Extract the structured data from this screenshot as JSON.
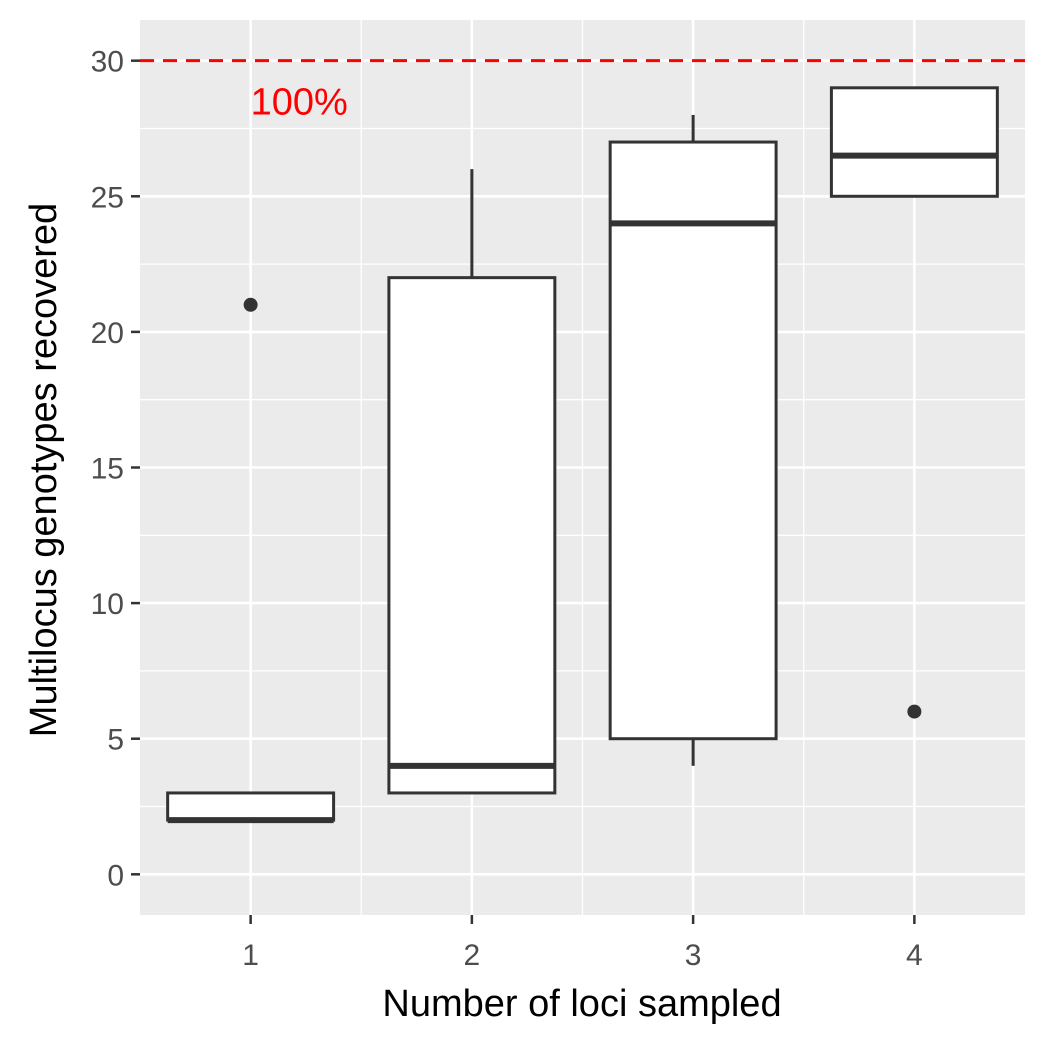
{
  "chart_data": {
    "type": "boxplot",
    "xlabel": "Number of loci sampled",
    "ylabel": "Multilocus genotypes recovered",
    "categories": [
      "1",
      "2",
      "3",
      "4"
    ],
    "ylim": [
      -1.5,
      31.5
    ],
    "yticks": [
      0,
      5,
      10,
      15,
      20,
      25,
      30
    ],
    "ytick_labels": [
      "0",
      "5",
      "10",
      "15",
      "20",
      "25",
      "30"
    ],
    "grid": true,
    "boxes": [
      {
        "category": "1",
        "whisker_low": 2,
        "q1": 2,
        "median": 2,
        "q3": 3,
        "whisker_high": 3,
        "outliers": [
          21
        ]
      },
      {
        "category": "2",
        "whisker_low": 3,
        "q1": 3,
        "median": 4,
        "q3": 22,
        "whisker_high": 26,
        "outliers": []
      },
      {
        "category": "3",
        "whisker_low": 4,
        "q1": 5,
        "median": 24,
        "q3": 27,
        "whisker_high": 28,
        "outliers": []
      },
      {
        "category": "4",
        "whisker_low": 25,
        "q1": 25,
        "median": 26.5,
        "q3": 29,
        "whisker_high": 29,
        "outliers": [
          6
        ]
      }
    ],
    "reference_line": {
      "y": 30,
      "style": "dashed",
      "color": "#ff0000"
    },
    "annotation": {
      "text": "100%",
      "x": "1",
      "y": 28.5,
      "color": "#ff0000"
    },
    "colors": {
      "panel": "#ebebeb",
      "grid": "#ffffff",
      "box_stroke": "#333333",
      "box_fill": "#ffffff"
    }
  }
}
